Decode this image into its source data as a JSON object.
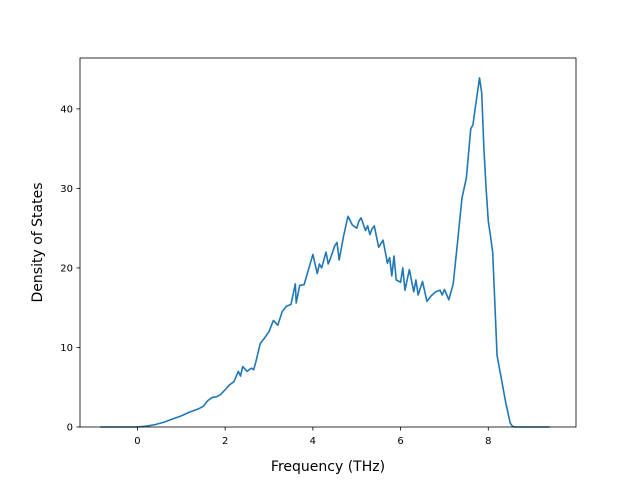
{
  "chart_data": {
    "type": "line",
    "title": "",
    "xlabel": "Frequency (THz)",
    "ylabel": "Density of States",
    "xlim": [
      -1.31,
      10.0
    ],
    "ylim": [
      0,
      46.4
    ],
    "xticks": [
      0,
      2,
      4,
      6,
      8
    ],
    "yticks": [
      0,
      10,
      20,
      30,
      40
    ],
    "grid": false,
    "legend": "none",
    "series": [
      {
        "color": "#1f77b4",
        "x": [
          -0.85,
          -0.5,
          0.0,
          0.2,
          0.4,
          0.6,
          0.8,
          1.0,
          1.2,
          1.4,
          1.5,
          1.6,
          1.7,
          1.8,
          1.9,
          2.0,
          2.1,
          2.2,
          2.3,
          2.35,
          2.4,
          2.5,
          2.6,
          2.65,
          2.7,
          2.8,
          2.9,
          3.0,
          3.1,
          3.2,
          3.3,
          3.4,
          3.5,
          3.6,
          3.62,
          3.7,
          3.8,
          3.9,
          4.0,
          4.1,
          4.15,
          4.2,
          4.3,
          4.35,
          4.4,
          4.5,
          4.55,
          4.6,
          4.7,
          4.8,
          4.82,
          4.9,
          5.0,
          5.05,
          5.1,
          5.2,
          5.25,
          5.3,
          5.35,
          5.4,
          5.5,
          5.6,
          5.7,
          5.75,
          5.8,
          5.85,
          5.9,
          6.0,
          6.05,
          6.1,
          6.2,
          6.3,
          6.35,
          6.4,
          6.5,
          6.6,
          6.7,
          6.8,
          6.9,
          6.95,
          7.0,
          7.1,
          7.2,
          7.3,
          7.4,
          7.5,
          7.6,
          7.65,
          7.7,
          7.8,
          7.85,
          7.9,
          7.95,
          8.0,
          8.05,
          8.1,
          8.2,
          8.25,
          8.3,
          8.4,
          8.5,
          8.55,
          8.6,
          8.7,
          9.4
        ],
        "y": [
          0.0,
          0.0,
          0.0,
          0.1,
          0.3,
          0.6,
          1.0,
          1.4,
          1.9,
          2.3,
          2.6,
          3.3,
          3.7,
          3.8,
          4.1,
          4.7,
          5.3,
          5.7,
          7.0,
          6.4,
          7.6,
          7.0,
          7.4,
          7.2,
          8.2,
          10.5,
          11.2,
          12.0,
          13.4,
          12.8,
          14.5,
          15.2,
          15.4,
          18.0,
          15.6,
          17.8,
          17.9,
          19.8,
          21.7,
          19.3,
          20.5,
          20.0,
          22.0,
          20.5,
          21.2,
          22.8,
          23.2,
          21.0,
          24.0,
          26.5,
          26.3,
          25.4,
          25.0,
          25.9,
          26.3,
          24.7,
          25.3,
          24.2,
          24.9,
          25.3,
          22.6,
          23.5,
          20.6,
          21.3,
          19.0,
          21.5,
          18.5,
          18.2,
          20.0,
          17.2,
          19.8,
          17.0,
          18.5,
          16.6,
          18.3,
          15.8,
          16.5,
          17.0,
          17.2,
          16.6,
          17.3,
          16.0,
          18.0,
          23.3,
          28.8,
          31.3,
          37.5,
          38.0,
          40.0,
          43.9,
          42.0,
          35.0,
          30.0,
          25.9,
          24.0,
          22.0,
          9.0,
          7.5,
          6.0,
          3.0,
          0.5,
          0.1,
          0.0,
          0.0,
          0.0
        ]
      }
    ]
  }
}
